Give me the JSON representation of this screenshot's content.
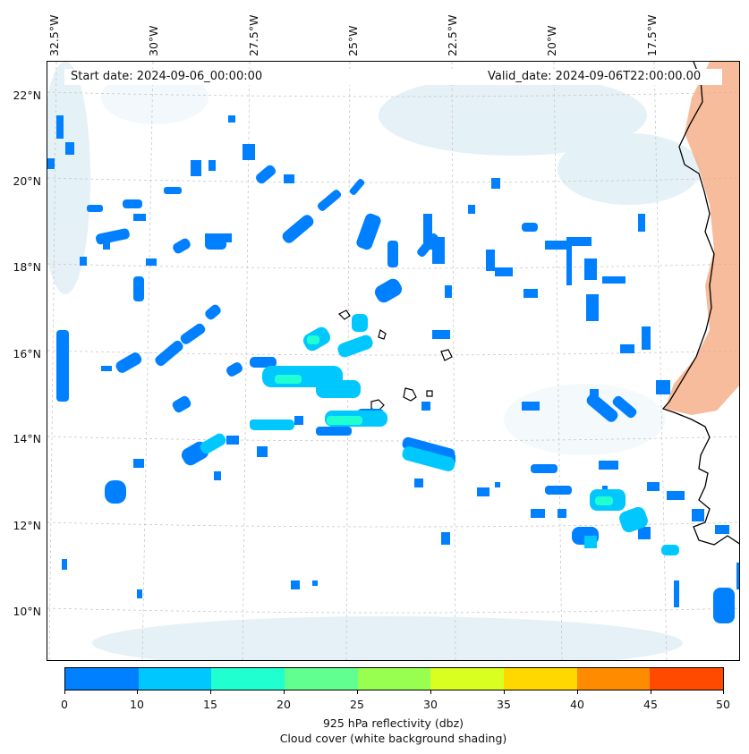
{
  "header": {
    "start_date": "Start date: 2024-09-06_00:00:00",
    "valid_date": "Valid_date: 2024-09-06T22:00:00.00"
  },
  "map": {
    "longitude_labels": [
      "32.5°W",
      "30°W",
      "27.5°W",
      "25°W",
      "22.5°W",
      "20°W",
      "17.5°W"
    ],
    "latitude_labels": [
      "22°N",
      "20°N",
      "18°N",
      "16°N",
      "14°N",
      "12°N",
      "10°N"
    ],
    "extent": {
      "lon_min": -33.0,
      "lon_max": -16.5,
      "lat_min": 9.0,
      "lat_max": 22.8
    },
    "gridlines": true,
    "coastline_color": "#000000",
    "land_shading_color": "#f4a57a",
    "cloud_shading_color": "#cfe6ef"
  },
  "colorbar": {
    "ticks": [
      "0",
      "10",
      "15",
      "20",
      "25",
      "30",
      "35",
      "40",
      "45",
      "50"
    ],
    "colors": [
      "#0080ff",
      "#00c8ff",
      "#20ffd0",
      "#60ff90",
      "#98ff50",
      "#d8ff20",
      "#ffd800",
      "#ff8c00",
      "#ff4a00"
    ],
    "label_line1": "925 hPa reflectivity (dbz)",
    "label_line2": "Cloud cover (white background shading)"
  }
}
